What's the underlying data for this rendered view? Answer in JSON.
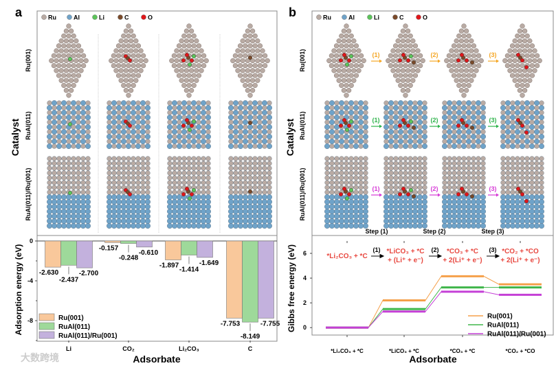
{
  "panel_a": {
    "letter": "a",
    "legend_atoms": [
      {
        "label": "Ru",
        "color": "#b9aba4"
      },
      {
        "label": "Al",
        "color": "#6fa3c9"
      },
      {
        "label": "Li",
        "color": "#5cc45a"
      },
      {
        "label": "C",
        "color": "#7a4a2a"
      },
      {
        "label": "O",
        "color": "#e0161a"
      }
    ],
    "row_labels": [
      "Ru(001)",
      "RuAl(011)",
      "RuAl(011)/Ru(001)"
    ],
    "catalyst_label": "Catalyst"
  },
  "panel_b": {
    "letter": "b",
    "row_labels": [
      "Ru(001)",
      "RuAl(011)",
      "RuAl(011)/Ru(001)"
    ],
    "catalyst_label": "Catalyst",
    "step_arrows": [
      "(1)",
      "(2)",
      "(3)"
    ],
    "step_labels": [
      "Step (1)",
      "Step (2)",
      "Step (3)"
    ],
    "row_colors": [
      "#f5a623",
      "#2db34a",
      "#d63ad6"
    ],
    "reaction": {
      "states": [
        "*Li₂CO₃ + *C",
        "*LiCO₃ + *C",
        "+ (Li⁺ + e⁻)",
        "*CO₃ + *C",
        "+ 2(Li⁺ + e⁻)",
        "*CO₂ + *CO",
        "+ 2(Li⁺ + e⁻)"
      ],
      "arrows": [
        "(1)",
        "(2)",
        "(3)"
      ]
    }
  },
  "chart_data": [
    {
      "type": "bar",
      "title": "",
      "xlabel": "Adsorbate",
      "ylabel": "Adsorption energy (eV)",
      "categories": [
        "Li",
        "CO₂",
        "Li₂CO₃",
        "C"
      ],
      "ylim": [
        -10,
        0
      ],
      "yticks": [
        "0",
        "-4",
        "-8"
      ],
      "ytick_values": [
        0,
        -4,
        -8
      ],
      "legend_position": "bottom-left",
      "series": [
        {
          "name": "Ru(001)",
          "color": "#f9c89b",
          "values": [
            -2.63,
            -0.157,
            -1.897,
            -7.753
          ],
          "labels": [
            "-2.630",
            "-0.157",
            "-1.897",
            "-7.753"
          ]
        },
        {
          "name": "RuAl(011)",
          "color": "#9ed99a",
          "values": [
            -2.437,
            -0.248,
            -1.414,
            -8.149
          ],
          "labels": [
            "-2.437",
            "-0.248",
            "-1.414",
            "-8.149"
          ]
        },
        {
          "name": "RuAl(011)/Ru(001)",
          "color": "#c3b1dd",
          "values": [
            -2.7,
            -0.61,
            -1.649,
            -7.755
          ],
          "labels": [
            "-2.700",
            "-0.610",
            "-1.649",
            "-7.755"
          ]
        }
      ]
    },
    {
      "type": "line",
      "title": "",
      "xlabel": "Adsorbate",
      "ylabel": "Gibbs free energy (eV)",
      "categories": [
        "*Li₂CO₃ + *C",
        "*LiCO₃ + *C",
        "*CO₃ + *C",
        "*CO₂ + *CO"
      ],
      "ylim": [
        -0.6,
        7
      ],
      "yticks": [
        "0",
        "2",
        "4",
        "6"
      ],
      "ytick_values": [
        0,
        2,
        4,
        6
      ],
      "legend_position": "bottom-right",
      "series": [
        {
          "name": "Ru(001)",
          "color": "#f5a04a",
          "values": [
            0,
            2.2,
            4.15,
            3.5
          ]
        },
        {
          "name": "RuAl(011)",
          "color": "#3fb54a",
          "values": [
            0,
            1.5,
            3.25,
            3.25
          ]
        },
        {
          "name": "RuAl(011)/Ru(001)",
          "color": "#c43fd6",
          "values": [
            0,
            1.3,
            2.9,
            2.65
          ]
        }
      ]
    }
  ],
  "watermark": "大数跨境"
}
